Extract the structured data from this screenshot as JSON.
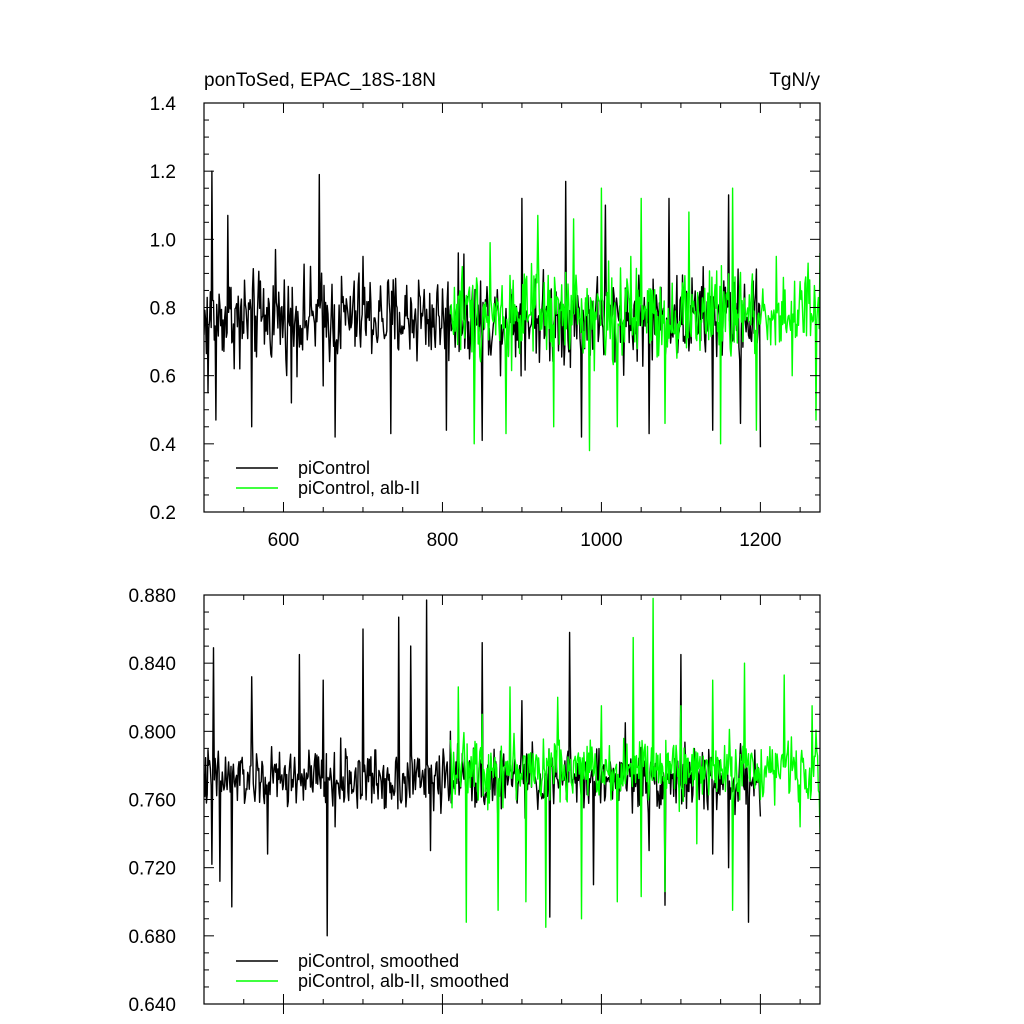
{
  "chart_data": [
    {
      "type": "line",
      "title": "ponToSed, EPAC_18S-18N",
      "units": "TgN/y",
      "xlim": [
        500,
        1275
      ],
      "ylim": [
        0.2,
        1.4
      ],
      "x_ticks": [
        600,
        800,
        1000,
        1200
      ],
      "x_tick_labels": [
        "600",
        "800",
        "1000",
        "1200"
      ],
      "y_ticks": [
        0.2,
        0.4,
        0.6,
        0.8,
        1.0,
        1.2,
        1.4
      ],
      "y_tick_labels": [
        "0.2",
        "0.4",
        "0.6",
        "0.8",
        "1.0",
        "1.2",
        "1.4"
      ],
      "legend_placement": "bottom-left",
      "grid": false,
      "series": [
        {
          "name": "piControl",
          "color": "#000000",
          "x_start": 500,
          "x_end": 1200,
          "sample_points": [
            [
              500,
              0.72
            ],
            [
              505,
              0.55
            ],
            [
              510,
              1.2
            ],
            [
              515,
              0.47
            ],
            [
              530,
              1.07
            ],
            [
              545,
              0.62
            ],
            [
              560,
              0.45
            ],
            [
              590,
              0.97
            ],
            [
              610,
              0.52
            ],
            [
              645,
              1.19
            ],
            [
              650,
              0.57
            ],
            [
              665,
              0.42
            ],
            [
              700,
              0.95
            ],
            [
              735,
              0.43
            ],
            [
              770,
              0.88
            ],
            [
              805,
              0.44
            ],
            [
              820,
              0.96
            ],
            [
              850,
              0.41
            ],
            [
              900,
              1.12
            ],
            [
              955,
              1.17
            ],
            [
              975,
              0.42
            ],
            [
              1005,
              1.1
            ],
            [
              1060,
              0.43
            ],
            [
              1085,
              1.12
            ],
            [
              1140,
              0.44
            ],
            [
              1160,
              1.13
            ],
            [
              1175,
              0.46
            ],
            [
              1200,
              0.39
            ]
          ],
          "mean": 0.77,
          "min": 0.39,
          "max": 1.2
        },
        {
          "name": "piControl, alb-II",
          "color": "#00ff00",
          "x_start": 810,
          "x_end": 1275,
          "sample_points": [
            [
              810,
              0.78
            ],
            [
              825,
              0.92
            ],
            [
              840,
              0.4
            ],
            [
              860,
              0.99
            ],
            [
              880,
              0.43
            ],
            [
              920,
              1.07
            ],
            [
              940,
              0.45
            ],
            [
              965,
              1.06
            ],
            [
              985,
              0.38
            ],
            [
              1000,
              1.15
            ],
            [
              1020,
              0.45
            ],
            [
              1050,
              1.12
            ],
            [
              1080,
              0.46
            ],
            [
              1110,
              1.08
            ],
            [
              1150,
              0.4
            ],
            [
              1165,
              1.15
            ],
            [
              1195,
              0.44
            ],
            [
              1220,
              0.95
            ],
            [
              1240,
              0.6
            ],
            [
              1260,
              0.93
            ],
            [
              1270,
              0.47
            ],
            [
              1275,
              0.96
            ]
          ],
          "mean": 0.78,
          "min": 0.38,
          "max": 1.15
        }
      ]
    },
    {
      "type": "line",
      "title": "",
      "xlim": [
        500,
        1275
      ],
      "ylim": [
        0.64,
        0.88
      ],
      "x_ticks": [
        600,
        800,
        1000,
        1200
      ],
      "x_tick_labels": [],
      "y_ticks": [
        0.64,
        0.68,
        0.72,
        0.76,
        0.8,
        0.84,
        0.88
      ],
      "y_tick_labels": [
        "0.640",
        "0.680",
        "0.720",
        "0.760",
        "0.800",
        "0.840",
        "0.880"
      ],
      "legend_placement": "bottom-left",
      "grid": false,
      "series": [
        {
          "name": "piControl, smoothed",
          "color": "#000000",
          "x_start": 500,
          "x_end": 1200,
          "sample_points": [
            [
              500,
              0.775
            ],
            [
              510,
              0.722
            ],
            [
              512,
              0.849
            ],
            [
              520,
              0.712
            ],
            [
              535,
              0.697
            ],
            [
              560,
              0.832
            ],
            [
              580,
              0.728
            ],
            [
              620,
              0.845
            ],
            [
              650,
              0.83
            ],
            [
              655,
              0.68
            ],
            [
              665,
              0.744
            ],
            [
              700,
              0.86
            ],
            [
              745,
              0.867
            ],
            [
              760,
              0.85
            ],
            [
              780,
              0.877
            ],
            [
              785,
              0.73
            ],
            [
              810,
              0.8
            ],
            [
              830,
              0.76
            ],
            [
              850,
              0.852
            ],
            [
              870,
              0.742
            ],
            [
              900,
              0.818
            ],
            [
              935,
              0.691
            ],
            [
              960,
              0.858
            ],
            [
              990,
              0.71
            ],
            [
              1030,
              0.805
            ],
            [
              1060,
              0.73
            ],
            [
              1080,
              0.698
            ],
            [
              1100,
              0.845
            ],
            [
              1140,
              0.728
            ],
            [
              1160,
              0.72
            ],
            [
              1185,
              0.688
            ],
            [
              1200,
              0.75
            ]
          ],
          "mean": 0.772,
          "min": 0.676,
          "max": 0.877
        },
        {
          "name": "piControl, alb-II, smoothed",
          "color": "#00ff00",
          "x_start": 810,
          "x_end": 1275,
          "sample_points": [
            [
              810,
              0.795
            ],
            [
              820,
              0.826
            ],
            [
              830,
              0.688
            ],
            [
              850,
              0.81
            ],
            [
              870,
              0.695
            ],
            [
              885,
              0.826
            ],
            [
              905,
              0.7
            ],
            [
              930,
              0.685
            ],
            [
              945,
              0.82
            ],
            [
              975,
              0.69
            ],
            [
              1000,
              0.815
            ],
            [
              1020,
              0.7
            ],
            [
              1040,
              0.855
            ],
            [
              1050,
              0.703
            ],
            [
              1065,
              0.878
            ],
            [
              1080,
              0.706
            ],
            [
              1100,
              0.815
            ],
            [
              1120,
              0.734
            ],
            [
              1140,
              0.83
            ],
            [
              1165,
              0.695
            ],
            [
              1180,
              0.84
            ],
            [
              1200,
              0.76
            ],
            [
              1230,
              0.833
            ],
            [
              1250,
              0.744
            ],
            [
              1265,
              0.815
            ],
            [
              1275,
              0.74
            ]
          ],
          "mean": 0.778,
          "min": 0.684,
          "max": 0.878
        }
      ]
    }
  ]
}
